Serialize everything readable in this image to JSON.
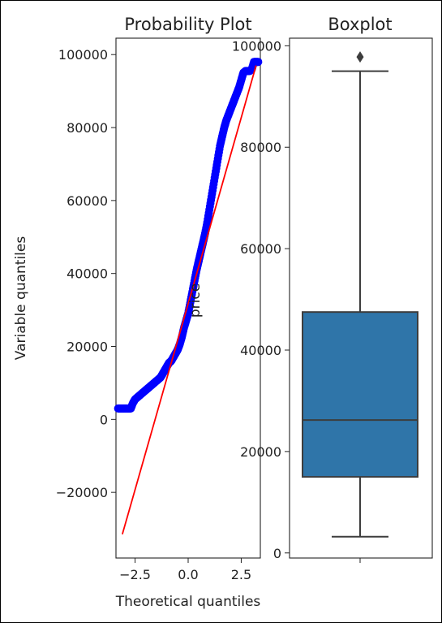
{
  "chart_data": [
    {
      "type": "scatter",
      "title": "Probability Plot",
      "xlabel": "Theoretical quantiles",
      "ylabel": "Variable quantiles",
      "xlim": [
        -3.4,
        3.4
      ],
      "ylim": [
        -38000,
        104500
      ],
      "xticks": [
        -2.5,
        0.0,
        2.5
      ],
      "xtick_labels": [
        "−2.5",
        "0.0",
        "2.5"
      ],
      "yticks": [
        -20000,
        0,
        20000,
        40000,
        60000,
        80000,
        100000
      ],
      "ytick_labels": [
        "−20000",
        "0",
        "20000",
        "40000",
        "60000",
        "80000",
        "100000"
      ],
      "point_color": "#0000ff",
      "fit_color": "#ff0000",
      "fit_line": {
        "x": [
          -3.1,
          3.2
        ],
        "y": [
          -31500,
          97000
        ]
      },
      "series": [
        {
          "x": [
            -3.3,
            -3.2,
            -3.1,
            -3.0,
            -2.9,
            -2.8,
            -2.7,
            -2.6,
            -2.5,
            -2.4,
            -2.3,
            -2.2,
            -2.1,
            -2.0,
            -1.9,
            -1.8,
            -1.7,
            -1.6,
            -1.5,
            -1.4,
            -1.3,
            -1.2,
            -1.1,
            -1.0,
            -0.9,
            -0.8,
            -0.7,
            -0.6,
            -0.5,
            -0.4,
            -0.3,
            -0.2,
            -0.1,
            0.0,
            0.1,
            0.2,
            0.3,
            0.4,
            0.5,
            0.6,
            0.7,
            0.8,
            0.9,
            1.0,
            1.1,
            1.2,
            1.3,
            1.4,
            1.5,
            1.6,
            1.7,
            1.8,
            1.9,
            2.0,
            2.1,
            2.2,
            2.3,
            2.4,
            2.5,
            2.6,
            2.7,
            2.8,
            2.9,
            3.0,
            3.1,
            3.2,
            3.3
          ],
          "y": [
            3000,
            3000,
            3000,
            3000,
            3000,
            3000,
            3000,
            4500,
            5500,
            6000,
            6500,
            7000,
            7500,
            8000,
            8500,
            9000,
            9500,
            10000,
            10500,
            11000,
            11500,
            12500,
            13500,
            14500,
            15500,
            16000,
            17000,
            18000,
            19000,
            20500,
            22500,
            25000,
            27000,
            29000,
            32000,
            35000,
            38000,
            41000,
            43500,
            46000,
            48500,
            51000,
            54000,
            57500,
            61000,
            64500,
            68000,
            71500,
            75000,
            77500,
            80000,
            82000,
            83500,
            85000,
            86500,
            88000,
            89500,
            91000,
            93000,
            95000,
            95500,
            95500,
            95500,
            96000,
            98000,
            98000,
            98000
          ]
        }
      ]
    },
    {
      "type": "box",
      "title": "Boxplot",
      "ylabel": "price",
      "ylim": [
        -1000,
        101500
      ],
      "yticks": [
        0,
        20000,
        40000,
        60000,
        80000,
        100000
      ],
      "ytick_labels": [
        "0",
        "20000",
        "40000",
        "60000",
        "80000",
        "100000"
      ],
      "box_color": "#2f75a9",
      "whisker_low": 3200,
      "q1": 15000,
      "median": 26200,
      "q3": 47500,
      "whisker_high": 95000,
      "outliers": [
        97800
      ]
    }
  ]
}
